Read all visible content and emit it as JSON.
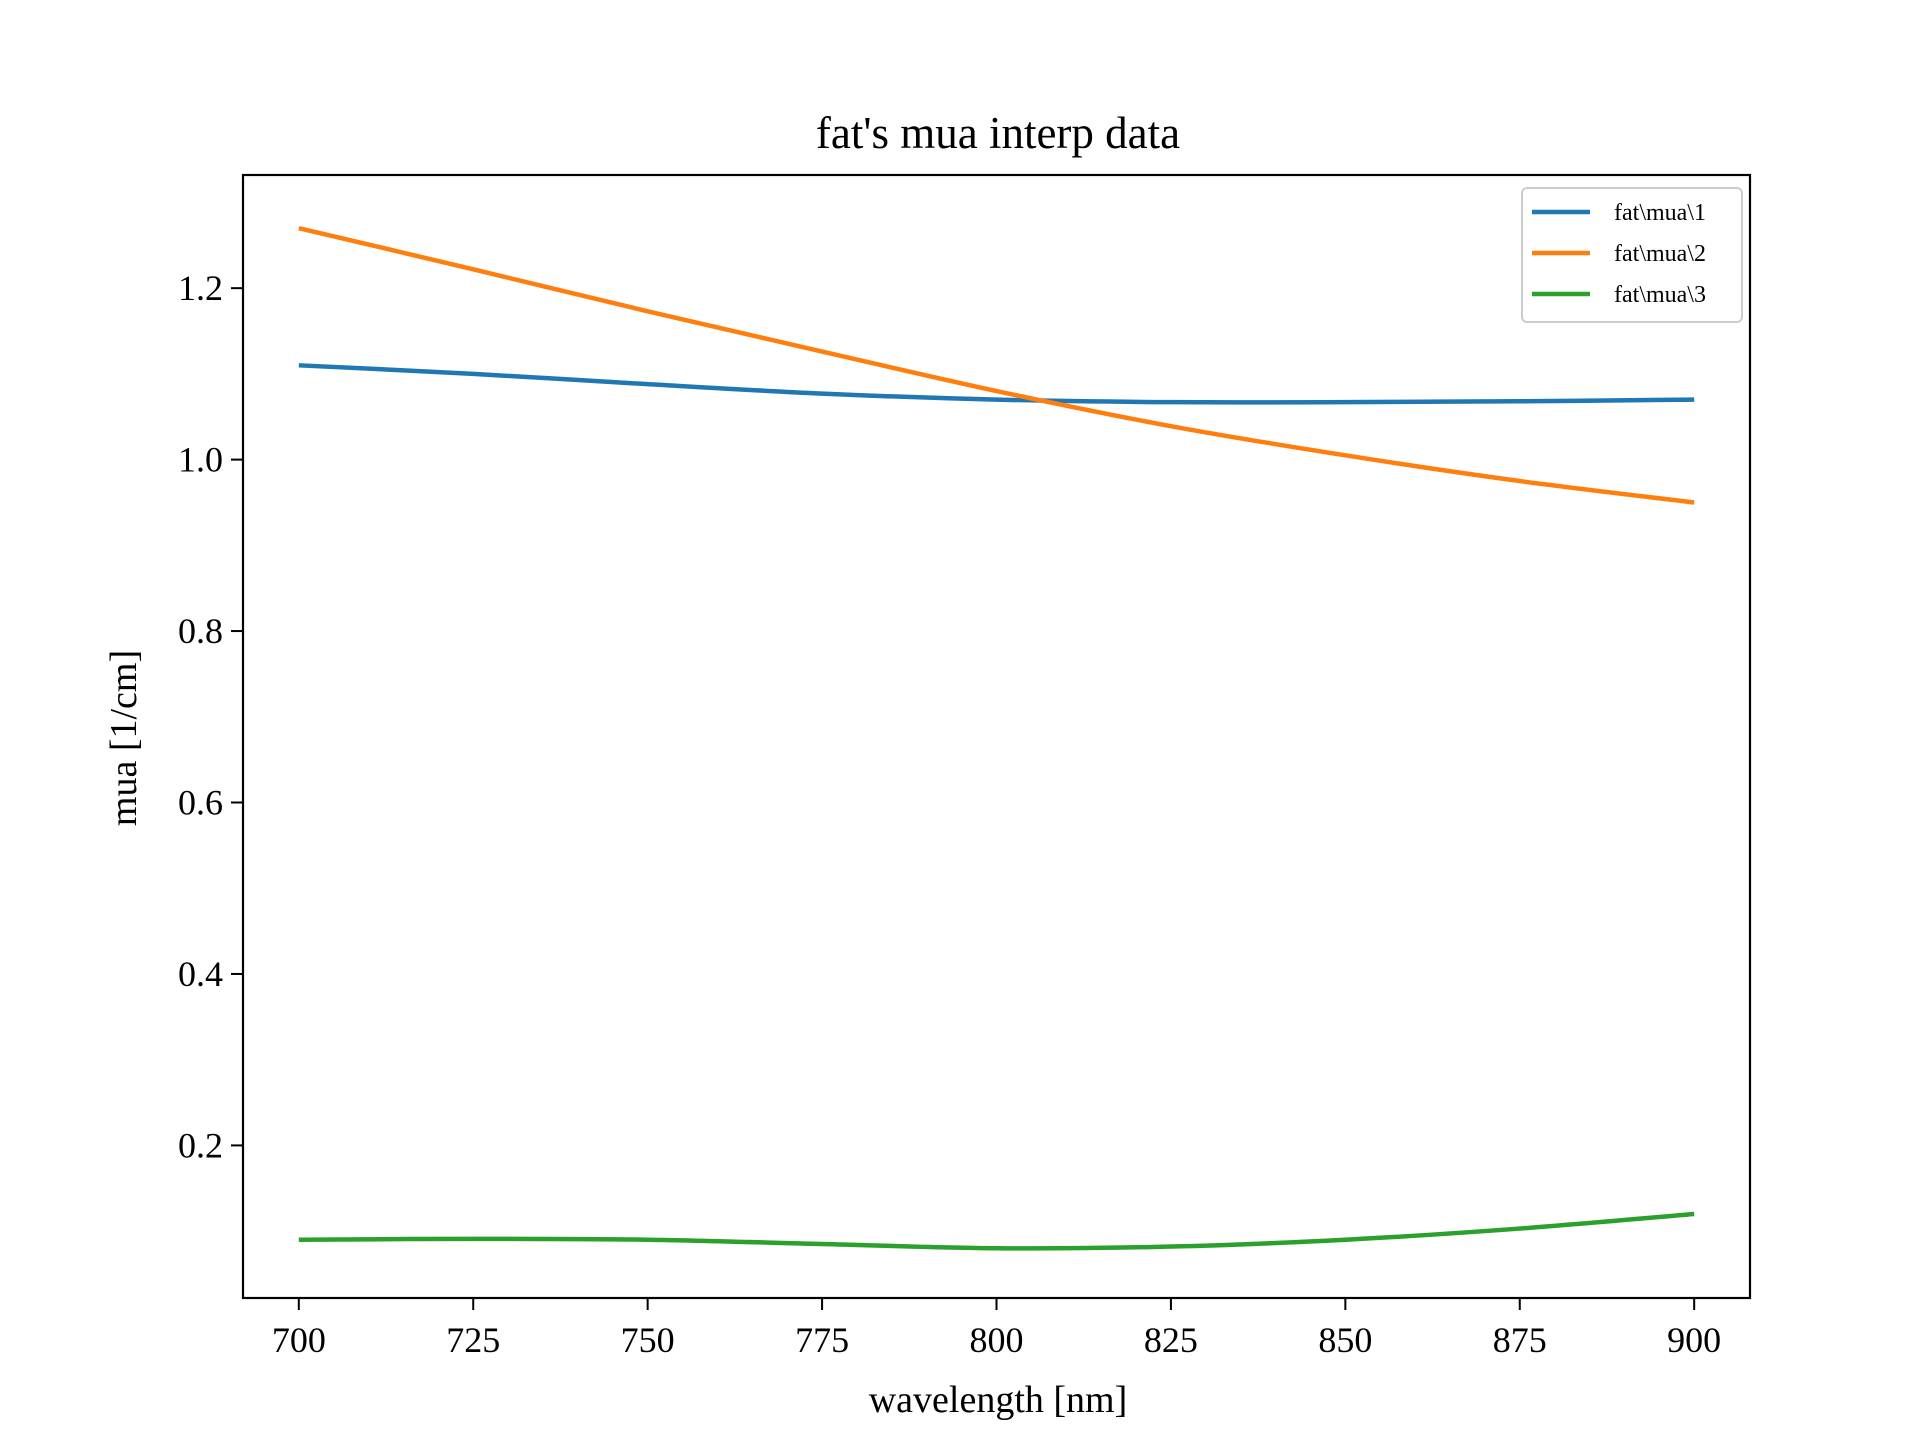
{
  "chart_data": {
    "type": "line",
    "title": "fat's mua interp data",
    "xlabel": "wavelength [nm]",
    "ylabel": "mua [1/cm]",
    "xlim": [
      692,
      908
    ],
    "ylim": [
      0.022,
      1.332
    ],
    "xticks": [
      700,
      725,
      750,
      775,
      800,
      825,
      850,
      875,
      900
    ],
    "xtick_labels": [
      "700",
      "725",
      "750",
      "775",
      "800",
      "825",
      "850",
      "875",
      "900"
    ],
    "yticks": [
      0.2,
      0.4,
      0.6,
      0.8,
      1.0,
      1.2
    ],
    "ytick_labels": [
      "0.2",
      "0.4",
      "0.6",
      "0.8",
      "1.0",
      "1.2"
    ],
    "grid": false,
    "legend_position": "top-right",
    "x": [
      700,
      725,
      750,
      775,
      800,
      825,
      850,
      875,
      900
    ],
    "series": [
      {
        "name": "fat\\mua\\1",
        "color": "#1f77b4",
        "values": [
          1.11,
          1.1,
          1.088,
          1.077,
          1.07,
          1.067,
          1.067,
          1.068,
          1.07
        ]
      },
      {
        "name": "fat\\mua\\2",
        "color": "#ff7f0e",
        "values": [
          1.27,
          1.222,
          1.173,
          1.126,
          1.08,
          1.039,
          1.005,
          0.975,
          0.95
        ]
      },
      {
        "name": "fat\\mua\\3",
        "color": "#2ca02c",
        "values": [
          0.09,
          0.091,
          0.09,
          0.085,
          0.08,
          0.082,
          0.09,
          0.103,
          0.12
        ]
      }
    ]
  }
}
